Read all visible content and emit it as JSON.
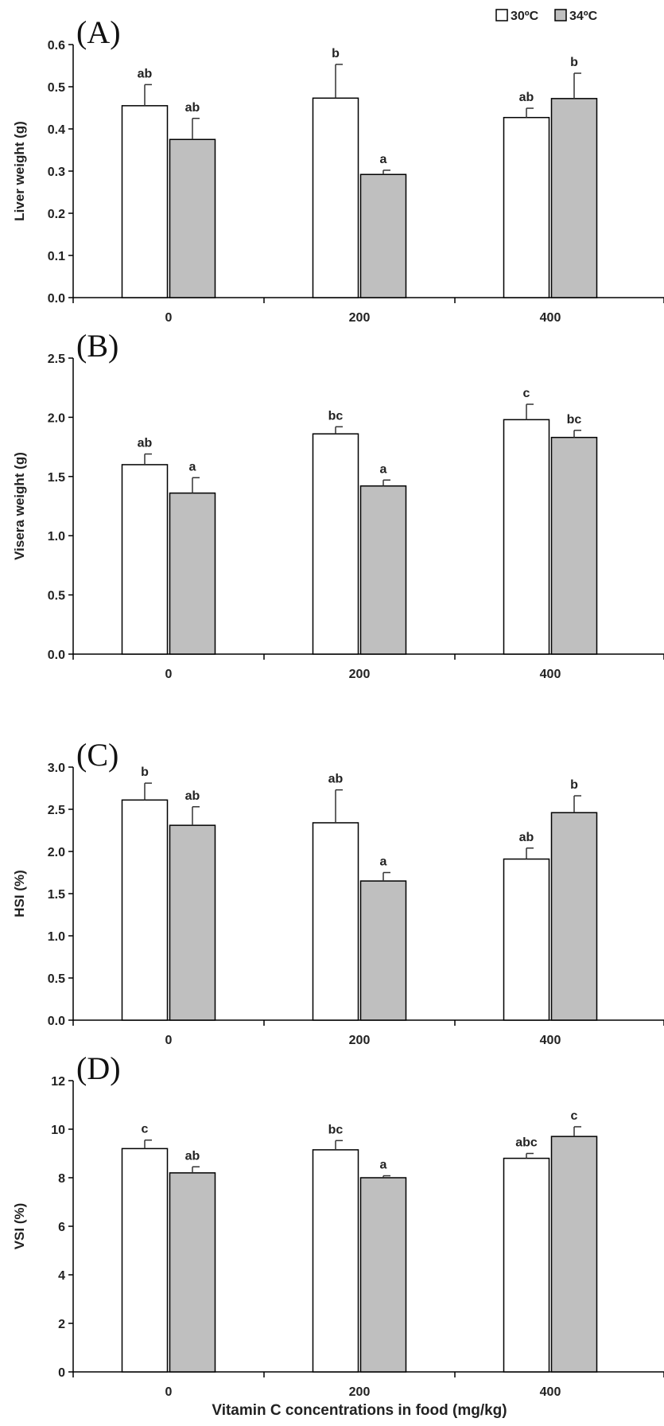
{
  "legend": [
    {
      "name": "30ºC",
      "color": "#ffffff"
    },
    {
      "name": "34ºC",
      "color": "#bfbfbf"
    }
  ],
  "xlabel": "Vitamin C concentrations in food (mg/kg)",
  "chart_data": [
    {
      "type": "bar",
      "panel": "(A)",
      "ylabel": "Liver weight (g)",
      "categories": [
        "0",
        "200",
        "400"
      ],
      "ylim": [
        0,
        0.6
      ],
      "yticks": [
        "0.0",
        "0.1",
        "0.2",
        "0.3",
        "0.4",
        "0.5",
        "0.6"
      ],
      "series": [
        {
          "name": "30ºC",
          "values": [
            0.455,
            0.473,
            0.427
          ],
          "errors": [
            0.05,
            0.08,
            0.022
          ],
          "labels": [
            "ab",
            "b",
            "ab"
          ]
        },
        {
          "name": "34ºC",
          "values": [
            0.375,
            0.292,
            0.472
          ],
          "errors": [
            0.05,
            0.01,
            0.06
          ],
          "labels": [
            "ab",
            "a",
            "b"
          ]
        }
      ]
    },
    {
      "type": "bar",
      "panel": "(B)",
      "ylabel": "Visera weight (g)",
      "categories": [
        "0",
        "200",
        "400"
      ],
      "ylim": [
        0,
        2.5
      ],
      "yticks": [
        "0.0",
        "0.5",
        "1.0",
        "1.5",
        "2.0",
        "2.5"
      ],
      "series": [
        {
          "name": "30ºC",
          "values": [
            1.6,
            1.86,
            1.98
          ],
          "errors": [
            0.09,
            0.06,
            0.13
          ],
          "labels": [
            "ab",
            "bc",
            "c"
          ]
        },
        {
          "name": "34ºC",
          "values": [
            1.36,
            1.42,
            1.83
          ],
          "errors": [
            0.13,
            0.05,
            0.06
          ],
          "labels": [
            "a",
            "a",
            "bc"
          ]
        }
      ]
    },
    {
      "type": "bar",
      "panel": "(C)",
      "ylabel": "HSI (%)",
      "categories": [
        "0",
        "200",
        "400"
      ],
      "ylim": [
        0,
        3.0
      ],
      "yticks": [
        "0.0",
        "0.5",
        "1.0",
        "1.5",
        "2.0",
        "2.5",
        "3.0"
      ],
      "series": [
        {
          "name": "30ºC",
          "values": [
            2.61,
            2.34,
            1.91
          ],
          "errors": [
            0.2,
            0.39,
            0.13
          ],
          "labels": [
            "b",
            "ab",
            "ab"
          ]
        },
        {
          "name": "34ºC",
          "values": [
            2.31,
            1.65,
            2.46
          ],
          "errors": [
            0.22,
            0.1,
            0.2
          ],
          "labels": [
            "ab",
            "a",
            "b"
          ]
        }
      ]
    },
    {
      "type": "bar",
      "panel": "(D)",
      "ylabel": "VSI (%)",
      "categories": [
        "0",
        "200",
        "400"
      ],
      "ylim": [
        0,
        12
      ],
      "yticks": [
        "0",
        "2",
        "4",
        "6",
        "8",
        "10",
        "12"
      ],
      "series": [
        {
          "name": "30ºC",
          "values": [
            9.2,
            9.15,
            8.8
          ],
          "errors": [
            0.35,
            0.38,
            0.2
          ],
          "labels": [
            "c",
            "bc",
            "abc"
          ]
        },
        {
          "name": "34ºC",
          "values": [
            8.2,
            8.0,
            9.7
          ],
          "errors": [
            0.25,
            0.08,
            0.4
          ],
          "labels": [
            "ab",
            "a",
            "c"
          ]
        }
      ]
    }
  ]
}
